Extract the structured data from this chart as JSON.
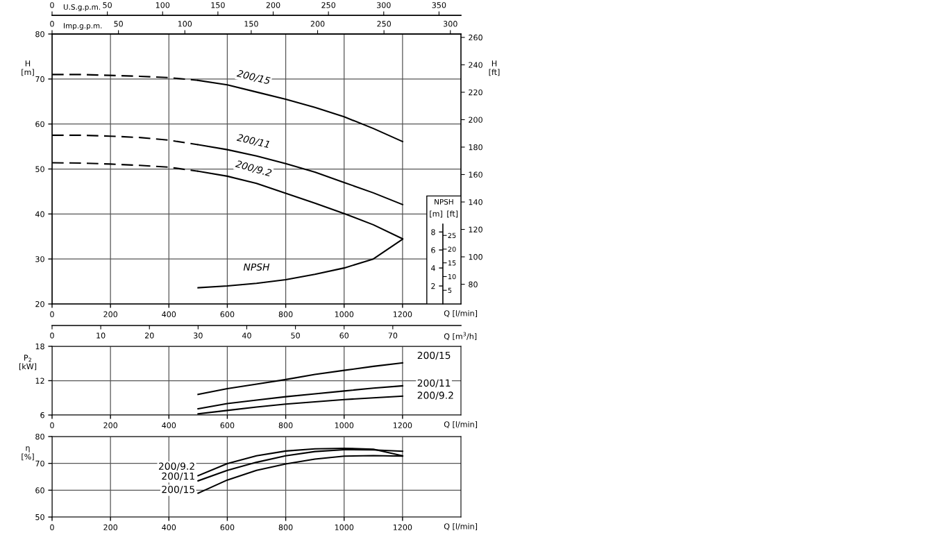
{
  "chart_data": [
    {
      "type": "line",
      "xlabel": "Q [l/min]",
      "ylabel": "H\n[m]",
      "y2label": "H\n[ft]",
      "x2label": "U.S.g.p.m.",
      "xlim": [
        0,
        1400
      ],
      "xticks": [
        0,
        200,
        400,
        600,
        800,
        1000,
        1200
      ],
      "ylim": [
        20,
        80
      ],
      "yticks": [
        20,
        30,
        40,
        50,
        60,
        70,
        80
      ],
      "y2lim": [
        65.62,
        262.47
      ],
      "y2ticks": [
        80,
        100,
        120,
        140,
        160,
        180,
        200,
        220,
        240,
        260
      ],
      "x2lim": [
        0,
        369.84
      ],
      "x2ticks": [
        0,
        50,
        100,
        150,
        200,
        250,
        300,
        350
      ],
      "grid": true,
      "series": [
        {
          "color": "#000000",
          "line_style": "dashed",
          "x": [
            0,
            100,
            200,
            300,
            400,
            500
          ],
          "values": [
            71.0,
            71.0,
            70.8,
            70.6,
            70.3,
            69.7
          ]
        },
        {
          "name": "200/15",
          "color": "#000000",
          "line_style": "solid",
          "x": [
            500,
            600,
            700,
            800,
            900,
            1000,
            1100,
            1200
          ],
          "values": [
            69.7,
            68.7,
            67.1,
            65.5,
            63.7,
            61.6,
            59.0,
            56.1
          ]
        },
        {
          "color": "#000000",
          "line_style": "dashed",
          "x": [
            0,
            100,
            200,
            300,
            400,
            500
          ],
          "values": [
            57.5,
            57.5,
            57.3,
            57.0,
            56.4,
            55.4
          ]
        },
        {
          "name": "200/11",
          "color": "#000000",
          "line_style": "solid",
          "x": [
            500,
            600,
            700,
            800,
            900,
            1000,
            1100,
            1200
          ],
          "values": [
            55.4,
            54.3,
            52.9,
            51.2,
            49.3,
            47.0,
            44.7,
            42.1
          ]
        },
        {
          "color": "#000000",
          "line_style": "dashed",
          "x": [
            0,
            100,
            200,
            300,
            400,
            500
          ],
          "values": [
            51.4,
            51.3,
            51.1,
            50.8,
            50.4,
            49.5
          ]
        },
        {
          "name": "200/9.2",
          "color": "#000000",
          "line_style": "solid",
          "x": [
            500,
            600,
            700,
            800,
            900,
            1000,
            1100,
            1200
          ],
          "values": [
            49.5,
            48.4,
            46.8,
            44.6,
            42.4,
            40.1,
            37.6,
            34.5
          ]
        }
      ]
    },
    {
      "type": "line",
      "ylabel": "[m]",
      "y2label": "[ft]",
      "x2label": "Imp.g.p.m.",
      "annotations": [
        "NPSH"
      ],
      "tick_labels": "y",
      "xlim": [
        0,
        1400
      ],
      "ylim": [
        0,
        30
      ],
      "yticks": [
        2,
        4,
        6,
        8
      ],
      "y2lim": [
        0,
        98.43
      ],
      "y2ticks": [
        5,
        10,
        15,
        20,
        25
      ],
      "x2lim": [
        0,
        307.96
      ],
      "x2ticks": [
        0,
        50,
        100,
        150,
        200,
        250,
        300
      ],
      "series": [
        {
          "name": "NPSH",
          "color": "#000000",
          "line_style": "solid",
          "x": [
            500,
            600,
            700,
            800,
            900,
            1000,
            1100,
            1200
          ],
          "values": [
            1.8,
            2.0,
            2.3,
            2.7,
            3.3,
            4.0,
            5.0,
            7.2
          ]
        }
      ]
    },
    {
      "type": "line",
      "xlabel": "Q [l/min]",
      "ylabel": "P$_{2}$\n[kW]",
      "x2label": "Q [m$^{3}$/h]",
      "xlim": [
        0,
        1400
      ],
      "xticks": [
        0,
        200,
        400,
        600,
        800,
        1000,
        1200
      ],
      "x2lim": [
        0,
        84
      ],
      "x2ticks": [
        0,
        10,
        20,
        30,
        40,
        50,
        60,
        70
      ],
      "ylim": [
        6,
        18
      ],
      "yticks": [
        6,
        12,
        18
      ],
      "grid": true,
      "series": [
        {
          "name": "200/15",
          "color": "#000000",
          "line_style": "solid",
          "x": [
            500,
            600,
            700,
            800,
            900,
            1000,
            1100,
            1200
          ],
          "values": [
            9.6,
            10.6,
            11.4,
            12.2,
            13.1,
            13.8,
            14.5,
            15.1
          ]
        },
        {
          "name": "200/11",
          "color": "#000000",
          "line_style": "solid",
          "x": [
            500,
            600,
            700,
            800,
            900,
            1000,
            1100,
            1200
          ],
          "values": [
            7.1,
            8.0,
            8.6,
            9.2,
            9.7,
            10.2,
            10.7,
            11.1
          ]
        },
        {
          "name": "200/9.2",
          "color": "#000000",
          "line_style": "solid",
          "x": [
            500,
            600,
            700,
            800,
            900,
            1000,
            1100,
            1200
          ],
          "values": [
            6.2,
            6.8,
            7.4,
            7.9,
            8.3,
            8.7,
            9.0,
            9.3
          ]
        }
      ]
    },
    {
      "type": "line",
      "xlabel": "Q [l/min]",
      "ylabel": "η\n[%]",
      "xlim": [
        0,
        1400
      ],
      "xticks": [
        0,
        200,
        400,
        600,
        800,
        1000,
        1200
      ],
      "ylim": [
        50,
        80
      ],
      "yticks": [
        50,
        60,
        70,
        80
      ],
      "grid": true,
      "series": [
        {
          "name": "200/9.2",
          "color": "#000000",
          "line_style": "solid",
          "x": [
            500,
            600,
            700,
            800,
            900,
            1000,
            1100,
            1200
          ],
          "values": [
            65.4,
            69.9,
            72.8,
            74.6,
            75.4,
            75.6,
            75.3,
            72.8
          ]
        },
        {
          "name": "200/11",
          "color": "#000000",
          "line_style": "solid",
          "x": [
            500,
            600,
            700,
            800,
            900,
            1000,
            1100,
            1200
          ],
          "values": [
            63.5,
            67.4,
            70.4,
            72.8,
            74.4,
            75.1,
            75.0,
            74.5
          ]
        },
        {
          "name": "200/15",
          "color": "#000000",
          "line_style": "solid",
          "x": [
            500,
            600,
            700,
            800,
            900,
            1000,
            1100,
            1200
          ],
          "values": [
            58.9,
            63.8,
            67.4,
            69.8,
            71.6,
            72.7,
            72.9,
            72.7
          ]
        }
      ]
    }
  ]
}
